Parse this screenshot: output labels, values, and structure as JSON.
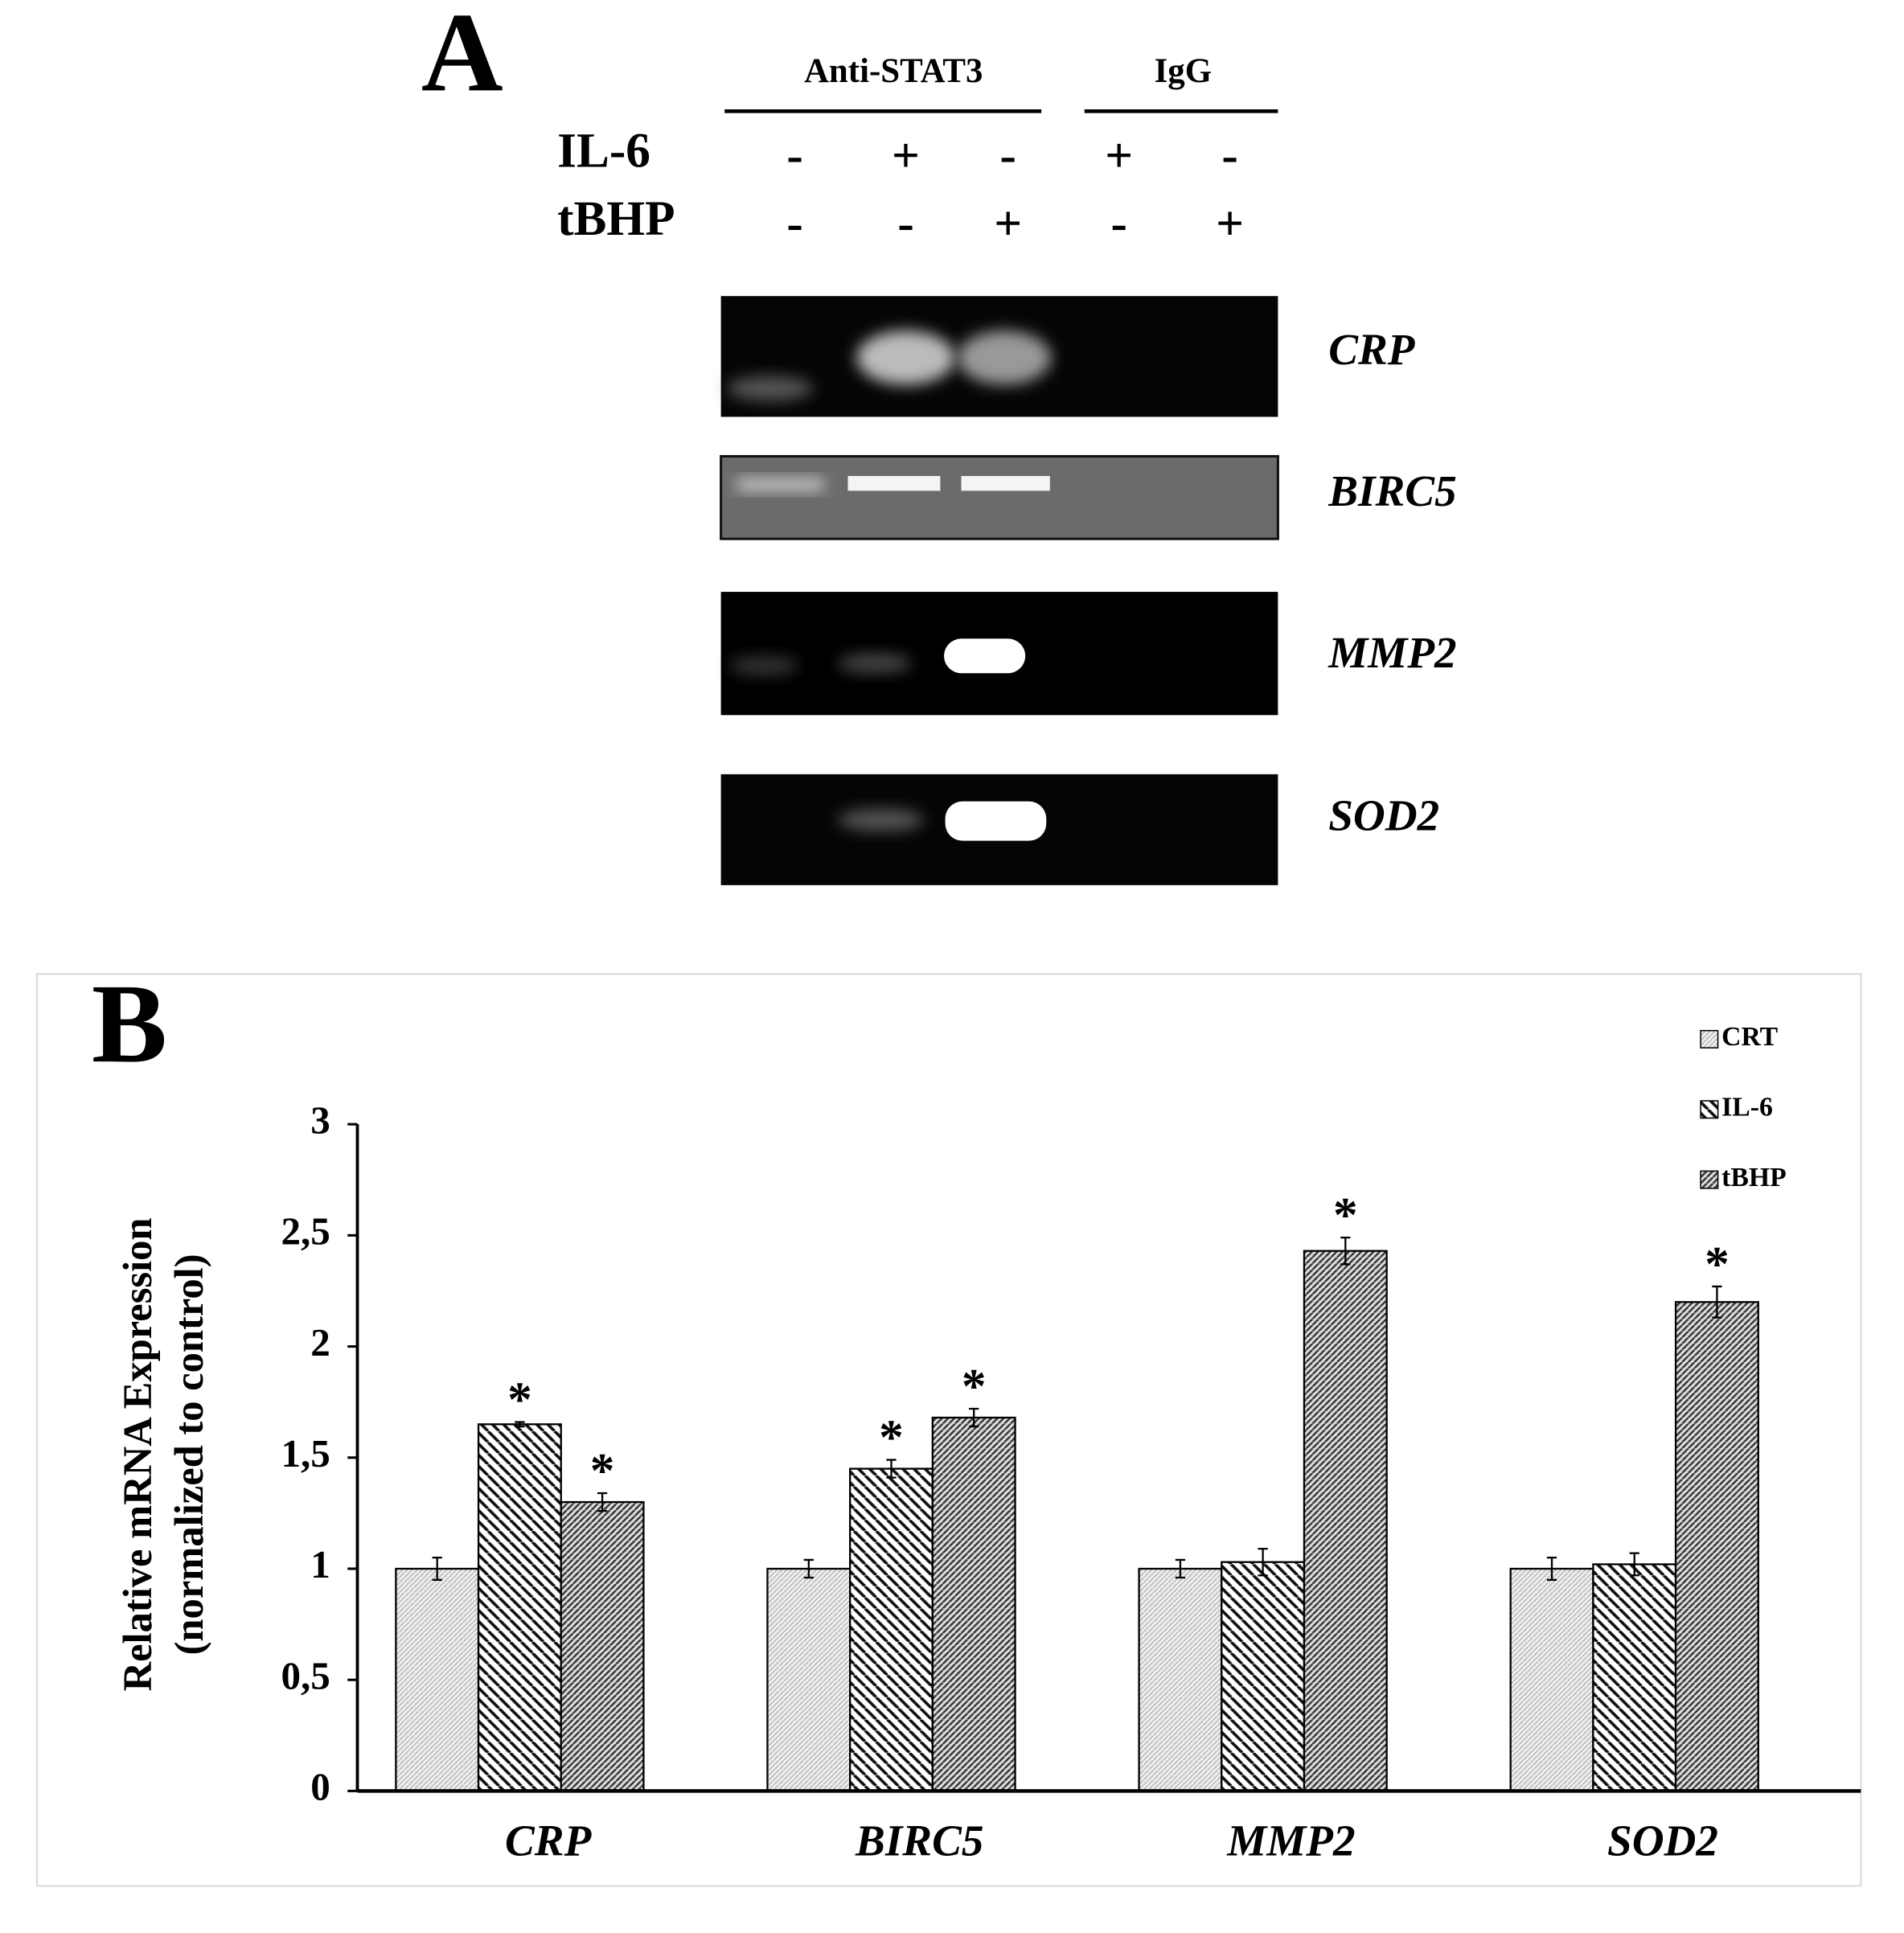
{
  "panel_a": {
    "label": "A",
    "groups": [
      "Anti-STAT3",
      "IgG"
    ],
    "rows": [
      {
        "label": "IL-6",
        "signs": [
          "-",
          "+",
          "-",
          "+",
          "-"
        ]
      },
      {
        "label": "tBHP",
        "signs": [
          "-",
          "-",
          "+",
          "-",
          "+"
        ]
      }
    ],
    "genes": [
      "CRP",
      "BIRC5",
      "MMP2",
      "SOD2"
    ]
  },
  "chart_data": {
    "type": "bar",
    "panel_label": "B",
    "ylabel": [
      "Relative mRNA Expression",
      "(normalized to control)"
    ],
    "categories": [
      "CRP",
      "BIRC5",
      "MMP2",
      "SOD2"
    ],
    "series": [
      {
        "name": "CRT",
        "hatch": "dots",
        "values": [
          1,
          1,
          1,
          1
        ],
        "errors": [
          0.05,
          0.04,
          0.04,
          0.05
        ],
        "annotations": [
          null,
          null,
          null,
          null
        ]
      },
      {
        "name": "IL-6",
        "hatch": "backslash",
        "values": [
          1.65,
          1.45,
          1.03,
          1.02
        ],
        "errors": [
          0.01,
          0.04,
          0.06,
          0.05
        ],
        "annotations": [
          "*",
          "*",
          null,
          null
        ]
      },
      {
        "name": "tBHP",
        "hatch": "slash-dense",
        "values": [
          1.3,
          1.68,
          2.43,
          2.2
        ],
        "errors": [
          0.04,
          0.04,
          0.06,
          0.07
        ],
        "annotations": [
          "*",
          "*",
          "*",
          "*"
        ]
      }
    ],
    "ylim": [
      0,
      3
    ],
    "yticks": [
      0,
      {
        "value": 0.5,
        "label": "0,5"
      },
      1,
      {
        "value": 1.5,
        "label": "1,5"
      },
      2,
      {
        "value": 2.5,
        "label": "2,5"
      },
      3
    ],
    "legend": "top-right"
  }
}
